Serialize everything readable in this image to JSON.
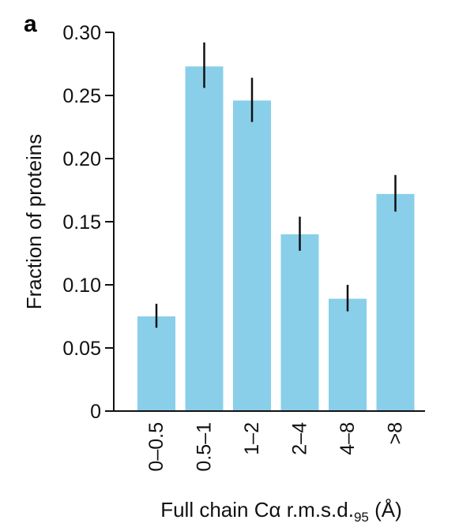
{
  "panel_label": "a",
  "chart_data": {
    "type": "bar",
    "categories": [
      "0–0.5",
      "0.5–1",
      "1–2",
      "2–4",
      "4–8",
      ">8"
    ],
    "values": [
      0.075,
      0.273,
      0.246,
      0.14,
      0.089,
      0.172
    ],
    "error_low": [
      0.066,
      0.256,
      0.229,
      0.127,
      0.079,
      0.158
    ],
    "error_high": [
      0.085,
      0.292,
      0.264,
      0.154,
      0.1,
      0.187
    ],
    "xlabel": "Full chain Cα r.m.s.d.",
    "xlabel_subscript": "95",
    "xlabel_unit": " (Å)",
    "ylabel": "Fraction of proteins",
    "ylim": [
      0,
      0.3
    ],
    "yticks": [
      0,
      0.05,
      0.1,
      0.15,
      0.2,
      0.25,
      0.3
    ],
    "ytick_labels": [
      "0",
      "0.05",
      "0.10",
      "0.15",
      "0.20",
      "0.25",
      "0.30"
    ],
    "grid": false,
    "bar_color": "#89cfea",
    "error_color": "#111111",
    "axis_color": "#111111"
  }
}
